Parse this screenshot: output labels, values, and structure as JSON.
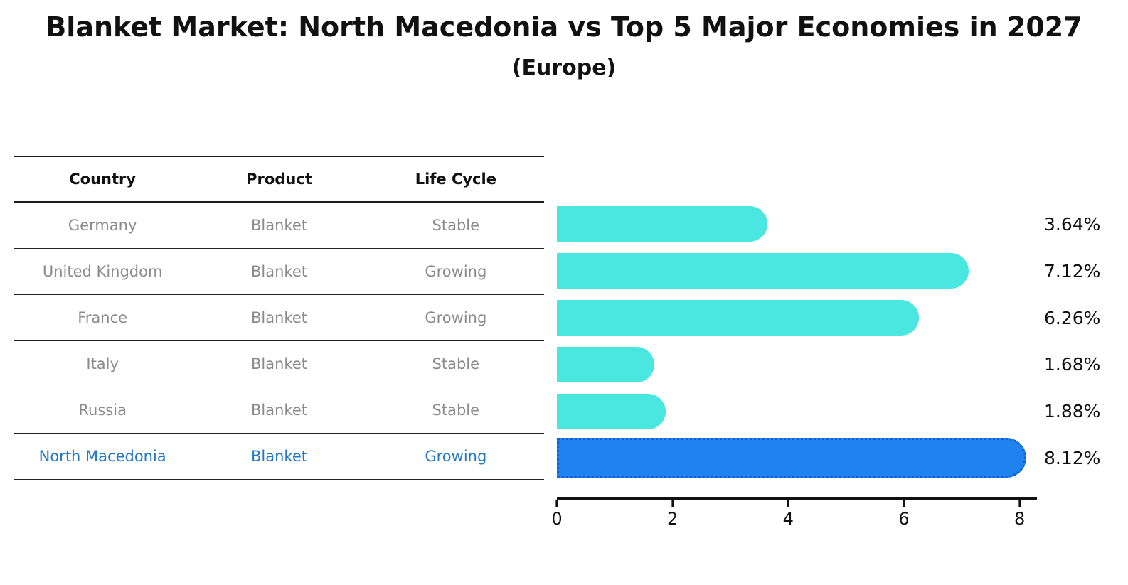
{
  "title": "Blanket Market: North Macedonia vs Top 5 Major Economies in 2027",
  "subtitle": "(Europe)",
  "table": {
    "headers": [
      "Country",
      "Product",
      "Life Cycle"
    ],
    "rows": [
      {
        "country": "Germany",
        "product": "Blanket",
        "life_cycle": "Stable",
        "highlight": false
      },
      {
        "country": "United Kingdom",
        "product": "Blanket",
        "life_cycle": "Growing",
        "highlight": false
      },
      {
        "country": "France",
        "product": "Blanket",
        "life_cycle": "Growing",
        "highlight": false
      },
      {
        "country": "Italy",
        "product": "Blanket",
        "life_cycle": "Stable",
        "highlight": false
      },
      {
        "country": "Russia",
        "product": "Blanket",
        "life_cycle": "Stable",
        "highlight": false
      },
      {
        "country": "North Macedonia",
        "product": "Blanket",
        "life_cycle": "Growing",
        "highlight": true
      }
    ]
  },
  "chart_data": {
    "type": "bar",
    "orientation": "horizontal",
    "title": "Blanket Market: North Macedonia vs Top 5 Major Economies in 2027",
    "subtitle": "(Europe)",
    "categories": [
      "Germany",
      "United Kingdom",
      "France",
      "Italy",
      "Russia",
      "North Macedonia"
    ],
    "values": [
      3.64,
      7.12,
      6.26,
      1.68,
      1.88,
      8.12
    ],
    "labels": [
      "3.64%",
      "7.12%",
      "6.26%",
      "1.68%",
      "1.88%",
      "8.12%"
    ],
    "x_ticks": [
      0,
      2,
      4,
      6,
      8
    ],
    "xlim": [
      0,
      8.3
    ],
    "grid": false,
    "legend": "none",
    "bar_color": "#4ae7e1",
    "highlight_color": "#1e83ee",
    "highlight_border_color": "#0f5fd0",
    "highlight_index": 5,
    "highlight_text_color": "#2478c8"
  }
}
